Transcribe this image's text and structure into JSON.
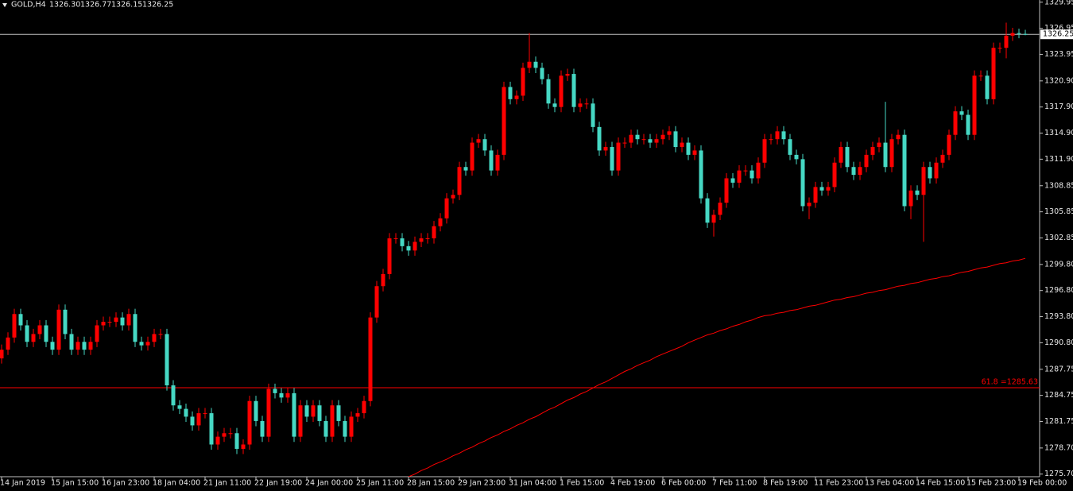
{
  "chart_data": {
    "type": "candlestick",
    "header": {
      "symbol": "GOLD,H4",
      "quote": [
        "1326.30",
        "1326.77",
        "1326.15",
        "1326.25"
      ]
    },
    "up_color": "#ff0000",
    "down_color": "#46d8c4",
    "ma_color": "#ff0000",
    "level_color": "#ff0000",
    "bid_color": "#c0c0c0",
    "ylim": [
      1275.4,
      1330.2
    ],
    "yticks": [
      {
        "value": 1275.7,
        "label": "1275.70"
      },
      {
        "value": 1278.7,
        "label": "1278.70"
      },
      1281.75,
      1284.75,
      1287.75,
      {
        "value": 1290.8,
        "label": "1290.80"
      },
      {
        "value": 1293.8,
        "label": "1293.80"
      },
      {
        "value": 1296.8,
        "label": "1296.80"
      },
      {
        "value": 1299.8,
        "label": "1299.80"
      },
      1302.85,
      1305.85,
      1308.85,
      {
        "value": 1311.9,
        "label": "1311.90"
      },
      {
        "value": 1314.9,
        "label": "1314.90"
      },
      {
        "value": 1317.9,
        "label": "1317.90"
      },
      {
        "value": 1320.9,
        "label": "1320.90"
      },
      1323.95,
      1326.95,
      1329.95
    ],
    "level": {
      "value": 1285.63,
      "label": "61.8 =1285.63"
    },
    "bid": {
      "value": 1326.25,
      "label": "1326.25"
    },
    "categories": [
      "14 Jan 2019",
      null,
      null,
      null,
      null,
      null,
      null,
      null,
      "15 Jan 15:00",
      null,
      null,
      null,
      null,
      null,
      null,
      null,
      "16 Jan 23:00",
      null,
      null,
      null,
      null,
      null,
      null,
      null,
      "18 Jan 04:00",
      null,
      null,
      null,
      null,
      null,
      null,
      null,
      "21 Jan 11:00",
      null,
      null,
      null,
      null,
      null,
      null,
      null,
      "22 Jan 19:00",
      null,
      null,
      null,
      null,
      null,
      null,
      null,
      "24 Jan 00:00",
      null,
      null,
      null,
      null,
      null,
      null,
      null,
      "25 Jan 11:00",
      null,
      null,
      null,
      null,
      null,
      null,
      null,
      "28 Jan 15:00",
      null,
      null,
      null,
      null,
      null,
      null,
      null,
      "29 Jan 23:00",
      null,
      null,
      null,
      null,
      null,
      null,
      null,
      "31 Jan 04:00",
      null,
      null,
      null,
      null,
      null,
      null,
      null,
      "1 Feb 15:00",
      null,
      null,
      null,
      null,
      null,
      null,
      null,
      "4 Feb 19:00",
      null,
      null,
      null,
      null,
      null,
      null,
      null,
      "6 Feb 00:00",
      null,
      null,
      null,
      null,
      null,
      null,
      null,
      "7 Feb 11:00",
      null,
      null,
      null,
      null,
      null,
      null,
      null,
      "8 Feb 19:00",
      null,
      null,
      null,
      null,
      null,
      null,
      null,
      "11 Feb 23:00",
      null,
      null,
      null,
      null,
      null,
      null,
      null,
      "13 Feb 04:00",
      null,
      null,
      null,
      null,
      null,
      null,
      null,
      "14 Feb 15:00",
      null,
      null,
      null,
      null,
      null,
      null,
      null,
      "15 Feb 23:00",
      null,
      null,
      null,
      null,
      null,
      null,
      null,
      "19 Feb 00:00",
      null
    ],
    "ohlc": [
      [
        1289.0,
        1290.6,
        1288.4,
        1290.0
      ],
      [
        1290.0,
        1292.0,
        1289.4,
        1291.4
      ],
      [
        1291.4,
        1294.7,
        1290.8,
        1294.1
      ],
      [
        1294.1,
        1294.7,
        1292.2,
        1292.8
      ],
      [
        1292.8,
        1293.4,
        1290.3,
        1290.9
      ],
      [
        1290.9,
        1292.4,
        1290.3,
        1291.8
      ],
      [
        1291.8,
        1293.4,
        1291.2,
        1292.8
      ],
      [
        1292.8,
        1293.4,
        1290.3,
        1290.9
      ],
      [
        1290.9,
        1291.5,
        1289.4,
        1290.0
      ],
      [
        1290.0,
        1295.2,
        1289.4,
        1294.6
      ],
      [
        1294.6,
        1295.2,
        1291.2,
        1291.8
      ],
      [
        1291.8,
        1292.4,
        1289.4,
        1290.0
      ],
      [
        1290.0,
        1291.5,
        1289.4,
        1290.9
      ],
      [
        1290.9,
        1291.5,
        1289.4,
        1290.0
      ],
      [
        1290.0,
        1291.5,
        1289.4,
        1290.9
      ],
      [
        1290.9,
        1293.4,
        1290.3,
        1292.8
      ],
      [
        1292.8,
        1293.8,
        1292.2,
        1293.2
      ],
      [
        1293.2,
        1293.8,
        1292.6,
        1293.2
      ],
      [
        1293.2,
        1294.3,
        1292.6,
        1293.7
      ],
      [
        1293.7,
        1294.3,
        1292.2,
        1292.8
      ],
      [
        1292.8,
        1294.7,
        1292.2,
        1294.1
      ],
      [
        1294.1,
        1294.7,
        1290.3,
        1290.9
      ],
      [
        1290.9,
        1291.5,
        1289.9,
        1290.5
      ],
      [
        1290.5,
        1291.5,
        1289.9,
        1290.9
      ],
      [
        1290.9,
        1292.4,
        1290.3,
        1291.8
      ],
      [
        1291.8,
        1292.4,
        1291.2,
        1291.8
      ],
      [
        1291.8,
        1292.4,
        1285.3,
        1285.9
      ],
      [
        1285.9,
        1286.5,
        1283.0,
        1283.6
      ],
      [
        1283.6,
        1284.2,
        1282.6,
        1283.2
      ],
      [
        1283.2,
        1283.8,
        1281.7,
        1282.3
      ],
      [
        1282.3,
        1282.9,
        1280.7,
        1281.3
      ],
      [
        1281.3,
        1283.3,
        1280.7,
        1282.7
      ],
      [
        1282.7,
        1283.3,
        1282.1,
        1282.7
      ],
      [
        1282.7,
        1283.3,
        1278.5,
        1279.1
      ],
      [
        1279.1,
        1280.6,
        1278.5,
        1280.0
      ],
      [
        1280.0,
        1281.0,
        1279.4,
        1280.4
      ],
      [
        1280.4,
        1281.0,
        1279.8,
        1280.4
      ],
      [
        1280.4,
        1281.0,
        1278.0,
        1278.6
      ],
      [
        1278.6,
        1279.7,
        1278.0,
        1279.1
      ],
      [
        1279.1,
        1284.7,
        1278.5,
        1284.1
      ],
      [
        1284.1,
        1284.7,
        1281.2,
        1281.8
      ],
      [
        1281.8,
        1282.4,
        1279.4,
        1280.0
      ],
      [
        1280.0,
        1286.1,
        1279.4,
        1285.5
      ],
      [
        1285.5,
        1286.1,
        1284.4,
        1285.0
      ],
      [
        1285.0,
        1285.6,
        1283.9,
        1284.5
      ],
      [
        1284.5,
        1285.6,
        1283.9,
        1285.0
      ],
      [
        1285.0,
        1285.6,
        1279.4,
        1280.0
      ],
      [
        1280.0,
        1284.2,
        1279.4,
        1283.6
      ],
      [
        1283.6,
        1284.2,
        1281.7,
        1282.3
      ],
      [
        1282.3,
        1284.2,
        1281.7,
        1283.6
      ],
      [
        1283.6,
        1284.2,
        1281.2,
        1281.8
      ],
      [
        1281.8,
        1282.4,
        1279.4,
        1280.0
      ],
      [
        1280.0,
        1284.2,
        1279.4,
        1283.6
      ],
      [
        1283.6,
        1284.2,
        1281.2,
        1281.8
      ],
      [
        1281.8,
        1282.4,
        1279.4,
        1280.0
      ],
      [
        1280.0,
        1282.9,
        1279.4,
        1282.3
      ],
      [
        1282.3,
        1283.3,
        1281.7,
        1282.7
      ],
      [
        1282.7,
        1284.7,
        1282.1,
        1284.1
      ],
      [
        1284.1,
        1294.3,
        1283.5,
        1293.7
      ],
      [
        1293.7,
        1297.9,
        1293.1,
        1297.3
      ],
      [
        1297.3,
        1299.3,
        1296.7,
        1298.7
      ],
      [
        1298.7,
        1303.4,
        1298.1,
        1302.8
      ],
      [
        1302.8,
        1303.4,
        1302.2,
        1302.8
      ],
      [
        1302.8,
        1303.4,
        1301.3,
        1301.9
      ],
      [
        1301.9,
        1302.5,
        1300.8,
        1301.4
      ],
      [
        1301.4,
        1303.0,
        1300.8,
        1302.4
      ],
      [
        1302.4,
        1303.4,
        1301.8,
        1302.8
      ],
      [
        1302.8,
        1303.4,
        1302.2,
        1302.8
      ],
      [
        1302.8,
        1304.8,
        1302.2,
        1304.2
      ],
      [
        1304.2,
        1305.7,
        1303.6,
        1305.1
      ],
      [
        1305.1,
        1308.0,
        1304.5,
        1307.4
      ],
      [
        1307.4,
        1308.4,
        1306.8,
        1307.8
      ],
      [
        1307.8,
        1311.6,
        1307.2,
        1311.0
      ],
      [
        1311.0,
        1311.6,
        1310.0,
        1310.6
      ],
      [
        1310.6,
        1314.4,
        1310.0,
        1313.8
      ],
      [
        1313.8,
        1314.8,
        1313.2,
        1314.2
      ],
      [
        1314.2,
        1314.8,
        1312.3,
        1312.9
      ],
      [
        1312.9,
        1313.5,
        1310.0,
        1310.6
      ],
      [
        1310.6,
        1313.0,
        1310.0,
        1312.4
      ],
      [
        1312.4,
        1320.8,
        1311.8,
        1320.2
      ],
      [
        1320.2,
        1320.8,
        1318.2,
        1318.8
      ],
      [
        1318.8,
        1319.8,
        1318.2,
        1319.2
      ],
      [
        1319.2,
        1323.0,
        1318.6,
        1322.4
      ],
      [
        1322.4,
        1326.4,
        1321.8,
        1323.1
      ],
      [
        1323.1,
        1323.7,
        1321.8,
        1322.4
      ],
      [
        1322.4,
        1323.0,
        1320.5,
        1321.1
      ],
      [
        1321.1,
        1321.7,
        1317.7,
        1318.3
      ],
      [
        1318.3,
        1318.9,
        1317.3,
        1317.9
      ],
      [
        1317.9,
        1322.1,
        1317.3,
        1321.5
      ],
      [
        1321.5,
        1322.3,
        1320.9,
        1321.7
      ],
      [
        1321.7,
        1322.3,
        1317.3,
        1317.9
      ],
      [
        1317.9,
        1318.9,
        1317.3,
        1318.3
      ],
      [
        1318.3,
        1318.9,
        1317.7,
        1318.3
      ],
      [
        1318.3,
        1318.9,
        1315.0,
        1315.6
      ],
      [
        1315.6,
        1316.2,
        1312.3,
        1312.9
      ],
      [
        1312.9,
        1313.9,
        1312.3,
        1313.3
      ],
      [
        1313.3,
        1313.9,
        1310.0,
        1310.6
      ],
      [
        1310.6,
        1314.4,
        1310.0,
        1313.8
      ],
      [
        1313.8,
        1314.4,
        1313.2,
        1313.8
      ],
      [
        1313.8,
        1315.3,
        1313.2,
        1314.7
      ],
      [
        1314.7,
        1315.3,
        1313.6,
        1314.2
      ],
      [
        1314.2,
        1314.8,
        1313.6,
        1314.2
      ],
      [
        1314.2,
        1314.8,
        1313.2,
        1313.8
      ],
      [
        1313.8,
        1314.8,
        1313.2,
        1314.2
      ],
      [
        1314.2,
        1315.3,
        1313.6,
        1314.7
      ],
      [
        1314.7,
        1315.7,
        1314.1,
        1315.1
      ],
      [
        1315.1,
        1315.7,
        1312.7,
        1313.3
      ],
      [
        1313.3,
        1314.4,
        1312.7,
        1313.8
      ],
      [
        1313.8,
        1314.4,
        1311.8,
        1312.4
      ],
      [
        1312.4,
        1313.5,
        1311.8,
        1312.9
      ],
      [
        1312.9,
        1313.5,
        1306.8,
        1307.4
      ],
      [
        1307.4,
        1308.0,
        1304.0,
        1304.6
      ],
      [
        1304.6,
        1306.1,
        1303.0,
        1305.5
      ],
      [
        1305.5,
        1307.5,
        1304.9,
        1306.9
      ],
      [
        1306.9,
        1310.3,
        1306.3,
        1309.7
      ],
      [
        1309.7,
        1310.3,
        1308.6,
        1309.2
      ],
      [
        1309.2,
        1311.2,
        1308.6,
        1310.6
      ],
      [
        1310.6,
        1311.2,
        1310.0,
        1310.6
      ],
      [
        1310.6,
        1311.2,
        1309.1,
        1309.7
      ],
      [
        1309.7,
        1312.1,
        1309.1,
        1311.5
      ],
      [
        1311.5,
        1314.8,
        1310.9,
        1314.2
      ],
      [
        1314.2,
        1314.8,
        1313.6,
        1314.2
      ],
      [
        1314.2,
        1315.7,
        1313.6,
        1315.1
      ],
      [
        1315.1,
        1315.7,
        1313.6,
        1314.2
      ],
      [
        1314.2,
        1314.8,
        1311.8,
        1312.4
      ],
      [
        1312.4,
        1313.0,
        1311.3,
        1311.9
      ],
      [
        1311.9,
        1312.5,
        1305.9,
        1306.5
      ],
      [
        1306.5,
        1307.5,
        1305.0,
        1306.9
      ],
      [
        1306.9,
        1309.3,
        1306.3,
        1308.7
      ],
      [
        1308.7,
        1309.3,
        1307.7,
        1308.3
      ],
      [
        1308.3,
        1309.3,
        1307.7,
        1308.7
      ],
      [
        1308.7,
        1312.1,
        1308.1,
        1311.5
      ],
      [
        1311.5,
        1313.9,
        1310.9,
        1313.3
      ],
      [
        1313.3,
        1313.9,
        1310.4,
        1311.0
      ],
      [
        1311.0,
        1311.6,
        1309.5,
        1310.1
      ],
      [
        1310.1,
        1311.6,
        1309.5,
        1311.0
      ],
      [
        1311.0,
        1313.0,
        1310.4,
        1312.4
      ],
      [
        1312.4,
        1313.9,
        1311.8,
        1313.3
      ],
      [
        1313.3,
        1314.4,
        1312.7,
        1313.8
      ],
      [
        1313.8,
        1318.5,
        1310.4,
        1311.0
      ],
      [
        1311.0,
        1314.8,
        1310.4,
        1314.2
      ],
      [
        1314.2,
        1315.3,
        1313.6,
        1314.7
      ],
      [
        1314.7,
        1315.3,
        1305.9,
        1306.5
      ],
      [
        1306.5,
        1308.9,
        1305.0,
        1308.3
      ],
      [
        1308.3,
        1308.9,
        1307.2,
        1307.8
      ],
      [
        1307.8,
        1311.6,
        1302.4,
        1311.0
      ],
      [
        1311.0,
        1311.6,
        1309.1,
        1309.7
      ],
      [
        1309.7,
        1312.1,
        1309.1,
        1311.5
      ],
      [
        1311.5,
        1313.0,
        1310.9,
        1312.4
      ],
      [
        1312.4,
        1315.3,
        1311.8,
        1314.7
      ],
      [
        1314.7,
        1318.0,
        1314.1,
        1317.4
      ],
      [
        1317.4,
        1318.0,
        1316.4,
        1317.0
      ],
      [
        1317.0,
        1317.6,
        1314.1,
        1314.7
      ],
      [
        1314.7,
        1322.1,
        1314.1,
        1321.5
      ],
      [
        1321.5,
        1322.1,
        1320.9,
        1321.5
      ],
      [
        1321.5,
        1322.1,
        1318.2,
        1318.8
      ],
      [
        1318.8,
        1325.3,
        1318.2,
        1324.7
      ],
      [
        1324.7,
        1325.3,
        1324.1,
        1324.7
      ],
      [
        1324.7,
        1327.6,
        1323.5,
        1326.1
      ],
      [
        1326.1,
        1327.0,
        1325.5,
        1326.4
      ],
      [
        1326.4,
        1326.9,
        1325.8,
        1326.3
      ],
      [
        1326.3,
        1326.77,
        1326.15,
        1326.25
      ]
    ],
    "ma": [
      null,
      null,
      null,
      null,
      null,
      null,
      null,
      null,
      null,
      null,
      null,
      null,
      null,
      null,
      null,
      null,
      null,
      null,
      null,
      null,
      null,
      null,
      null,
      null,
      null,
      null,
      null,
      null,
      null,
      null,
      null,
      null,
      null,
      null,
      null,
      null,
      null,
      null,
      null,
      null,
      null,
      null,
      null,
      null,
      null,
      null,
      null,
      null,
      null,
      null,
      null,
      null,
      null,
      null,
      null,
      null,
      null,
      null,
      null,
      null,
      null,
      null,
      null,
      null,
      1275.4,
      1275.7,
      1276.1,
      1276.4,
      1276.8,
      1277.1,
      1277.4,
      1277.8,
      1278.1,
      1278.5,
      1278.8,
      1279.2,
      1279.5,
      1279.9,
      1280.2,
      1280.6,
      1280.9,
      1281.3,
      1281.6,
      1282.0,
      1282.3,
      1282.7,
      1283.1,
      1283.4,
      1283.8,
      1284.2,
      1284.5,
      1284.9,
      1285.2,
      1285.6,
      1286.0,
      1286.3,
      1286.7,
      1287.1,
      1287.5,
      1287.8,
      1288.2,
      1288.5,
      1288.8,
      1289.2,
      1289.5,
      1289.8,
      1290.1,
      1290.4,
      1290.8,
      1291.1,
      1291.4,
      1291.7,
      1291.9,
      1292.2,
      1292.4,
      1292.7,
      1292.9,
      1293.2,
      1293.4,
      1293.7,
      1293.9,
      1294.0,
      1294.2,
      1294.3,
      1294.5,
      1294.6,
      1294.8,
      1295.0,
      1295.1,
      1295.3,
      1295.5,
      1295.7,
      1295.8,
      1296.0,
      1296.1,
      1296.3,
      1296.5,
      1296.6,
      1296.8,
      1296.9,
      1297.1,
      1297.3,
      1297.4,
      1297.6,
      1297.7,
      1297.9,
      1298.1,
      1298.2,
      1298.4,
      1298.5,
      1298.7,
      1298.9,
      1299.0,
      1299.2,
      1299.4,
      1299.5,
      1299.7,
      1299.9,
      1300.0,
      1300.2,
      1300.3,
      1300.5
    ]
  }
}
